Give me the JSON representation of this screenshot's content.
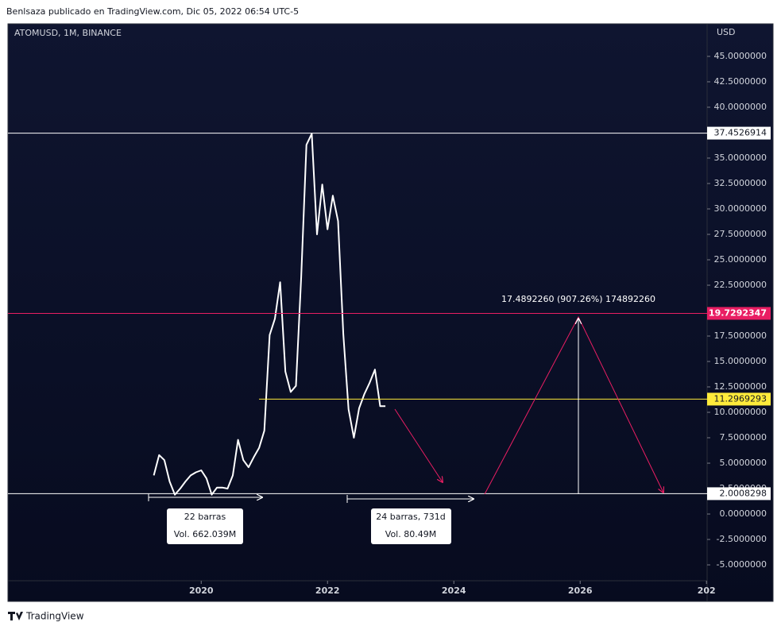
{
  "header": {
    "title": "Benlsaza publicado en TradingView.com, Dic 05, 2022 06:54 UTC-5"
  },
  "footer": {
    "brand": "TradingView"
  },
  "chart_data": {
    "type": "line",
    "title": "ATOMUSD, 1M, BINANCE",
    "y_axis_label": "USD",
    "color": "#ffffff",
    "x": [
      2019.25,
      2019.3333,
      2019.4167,
      2019.5,
      2019.5833,
      2019.6667,
      2019.75,
      2019.8333,
      2019.9167,
      2020.0,
      2020.0833,
      2020.1667,
      2020.25,
      2020.3333,
      2020.4167,
      2020.5,
      2020.5833,
      2020.6667,
      2020.75,
      2020.8333,
      2020.9167,
      2021.0,
      2021.0833,
      2021.1667,
      2021.25,
      2021.3333,
      2021.4167,
      2021.5,
      2021.5833,
      2021.6667,
      2021.75,
      2021.8333,
      2021.9167,
      2022.0,
      2022.0833,
      2022.1667,
      2022.25,
      2022.3333,
      2022.4167,
      2022.5,
      2022.5833,
      2022.6667,
      2022.75,
      2022.8333,
      2022.9167
    ],
    "values": [
      3.8,
      5.8,
      5.3,
      3.2,
      1.9,
      2.5,
      3.2,
      3.8,
      4.1,
      4.3,
      3.5,
      1.9,
      2.6,
      2.6,
      2.5,
      3.8,
      7.3,
      5.3,
      4.6,
      5.6,
      6.5,
      8.2,
      17.6,
      19.2,
      22.8,
      14.0,
      12.0,
      12.6,
      23.3,
      36.3,
      37.4,
      27.5,
      32.4,
      28.0,
      31.3,
      28.8,
      17.7,
      10.3,
      7.5,
      10.4,
      11.8,
      12.9,
      14.2,
      10.6,
      10.6
    ],
    "xlim": [
      2016.94,
      2028.01
    ],
    "xticks": [
      2020,
      2022,
      2024,
      2026,
      {
        "value": 2028,
        "label": "202"
      }
    ],
    "ylim": [
      -6.56,
      48.2
    ],
    "yticks": [
      {
        "value": 45,
        "label": "45.0000000"
      },
      {
        "value": 42.5,
        "label": "42.5000000"
      },
      {
        "value": 40,
        "label": "40.0000000"
      },
      {
        "value": 35,
        "label": "35.0000000"
      },
      {
        "value": 32.5,
        "label": "32.5000000"
      },
      {
        "value": 30,
        "label": "30.0000000"
      },
      {
        "value": 27.5,
        "label": "27.5000000"
      },
      {
        "value": 25,
        "label": "25.0000000"
      },
      {
        "value": 22.5,
        "label": "22.5000000"
      },
      {
        "value": 17.5,
        "label": "17.5000000"
      },
      {
        "value": 15,
        "label": "15.0000000"
      },
      {
        "value": 12.5,
        "label": "12.5000000"
      },
      {
        "value": 10,
        "label": "10.0000000"
      },
      {
        "value": 7.5,
        "label": "7.5000000"
      },
      {
        "value": 5,
        "label": "5.0000000"
      },
      {
        "value": 2.5,
        "label": "2.5000000"
      },
      {
        "value": 0,
        "label": "0.0000000"
      },
      {
        "value": -2.5,
        "label": "-2.5000000"
      },
      {
        "value": -5,
        "label": "-5.0000000"
      }
    ],
    "levels": [
      {
        "value": 37.4526914,
        "color": "#ffffff"
      },
      {
        "value": 19.7292347,
        "color": "#e91e63"
      },
      {
        "value": 11.2969293,
        "color": "#ffeb3b"
      },
      {
        "value": 2.0008298,
        "color": "#ffffff"
      }
    ],
    "annotations": {
      "measure": "17.4892260 (907.26%) 174892260",
      "box1": [
        "22 barras",
        "Vol. 662.039M"
      ],
      "box2": [
        "24 barras, 731d",
        "Vol. 80.49M"
      ]
    }
  }
}
